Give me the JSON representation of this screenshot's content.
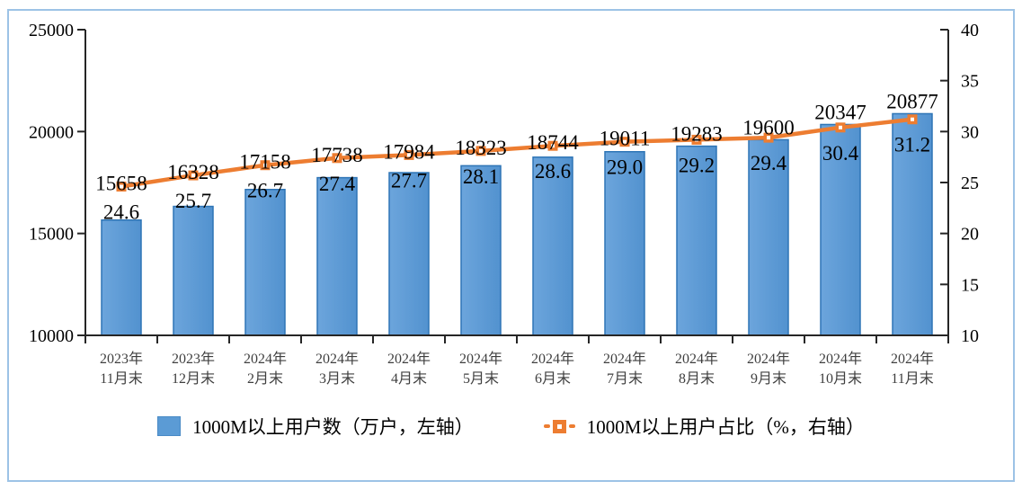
{
  "chart_data": {
    "type": "combo",
    "title": "",
    "categories": [
      {
        "line1": "2023年",
        "line2": "11月末"
      },
      {
        "line1": "2023年",
        "line2": "12月末"
      },
      {
        "line1": "2024年",
        "line2": "2月末"
      },
      {
        "line1": "2024年",
        "line2": "3月末"
      },
      {
        "line1": "2024年",
        "line2": "4月末"
      },
      {
        "line1": "2024年",
        "line2": "5月末"
      },
      {
        "line1": "2024年",
        "line2": "6月末"
      },
      {
        "line1": "2024年",
        "line2": "7月末"
      },
      {
        "line1": "2024年",
        "line2": "8月末"
      },
      {
        "line1": "2024年",
        "line2": "9月末"
      },
      {
        "line1": "2024年",
        "line2": "10月末"
      },
      {
        "line1": "2024年",
        "line2": "11月末"
      }
    ],
    "series": [
      {
        "name": "1000M以上用户数（万户，左轴）",
        "type": "bar",
        "axis": "left",
        "color": "#5B9BD5",
        "border_color": "#2E75B6",
        "values": [
          15658,
          16328,
          17158,
          17738,
          17984,
          18323,
          18744,
          19011,
          19283,
          19600,
          20347,
          20877
        ]
      },
      {
        "name": "1000M以上用户占比（%，右轴）",
        "type": "line",
        "axis": "right",
        "color": "#ED7D31",
        "marker": "square-with-white-center",
        "values": [
          24.6,
          25.7,
          26.7,
          27.4,
          27.7,
          28.1,
          28.6,
          29.0,
          29.2,
          29.4,
          30.4,
          31.2
        ],
        "labels": [
          "24.6",
          "25.7",
          "26.7",
          "27.4",
          "27.7",
          "28.1",
          "28.6",
          "29.0",
          "29.2",
          "29.4",
          "30.4",
          "31.2"
        ]
      }
    ],
    "left_axis": {
      "min": 10000,
      "max": 25000,
      "step": 5000,
      "ticks": [
        "25000",
        "20000",
        "15000",
        "10000"
      ]
    },
    "right_axis": {
      "min": 10,
      "max": 40,
      "step": 5,
      "ticks": [
        "40",
        "35",
        "30",
        "25",
        "20",
        "15",
        "10"
      ]
    },
    "grid": false,
    "legend_position": "bottom",
    "frame_color": "#9DC3E6",
    "axis_color": "#262626",
    "x_label_color": "#3F3F3F"
  }
}
